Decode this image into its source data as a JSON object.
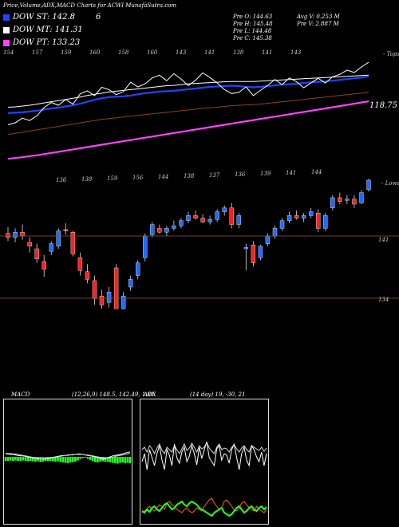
{
  "header": {
    "title": "Price,Volume,ADX,MACD Charts for ACWI MunafaSutra.com"
  },
  "legend": [
    {
      "label": "DOW ST: 142.8",
      "color": "#1e44ff",
      "note": "6"
    },
    {
      "label": "DOW MT: 141.31",
      "color": "#ffffff",
      "note": ""
    },
    {
      "label": "DOW PT: 133.23",
      "color": "#ff44ff",
      "note": ""
    }
  ],
  "info": {
    "pre_o": "Pre  O: 144.63",
    "pre_h": "Pre  H: 145.48",
    "pre_l": "Pre  L: 144.48",
    "pre_c": "Pre  C: 145.38",
    "avg_v": "Avg V: 0.253 M",
    "pre_v": "Pre  V: 2.887 M"
  },
  "top_label": "- Tops",
  "lows_label": "- Lows",
  "top_ticks": [
    "154",
    "157",
    "159",
    "160",
    "158",
    "160",
    "143",
    "141",
    "138",
    "141",
    "143"
  ],
  "low_ticks": [
    "136",
    "138",
    "159",
    "156",
    "144",
    "138",
    "137",
    "136",
    "139",
    "141",
    "144"
  ],
  "ema_label": "118.75",
  "right_labels": [
    "141",
    "134"
  ],
  "macd": {
    "title": "MACD",
    "params": "(12,26,9) 148.5,  142.49,  1.01"
  },
  "adx": {
    "title": "ADX",
    "params": "(14 day) 19,  -30,  21"
  },
  "chart_data": {
    "type": "candlestick",
    "title": "Price,Volume,ADX,MACD Charts for ACWI MunafaSutra.com",
    "candles": [
      {
        "o": 141.2,
        "h": 141.7,
        "l": 140.6,
        "c": 140.9
      },
      {
        "o": 140.9,
        "h": 141.6,
        "l": 140.5,
        "c": 141.3
      },
      {
        "o": 141.3,
        "h": 141.9,
        "l": 140.7,
        "c": 141.0
      },
      {
        "o": 140.5,
        "h": 140.9,
        "l": 139.7,
        "c": 140.2
      },
      {
        "o": 140.0,
        "h": 140.4,
        "l": 138.9,
        "c": 139.2
      },
      {
        "o": 139.0,
        "h": 139.5,
        "l": 137.8,
        "c": 138.4
      },
      {
        "o": 139.8,
        "h": 140.6,
        "l": 139.5,
        "c": 140.4
      },
      {
        "o": 140.2,
        "h": 141.6,
        "l": 140.0,
        "c": 141.4
      },
      {
        "o": 141.5,
        "h": 142.0,
        "l": 141.1,
        "c": 141.4
      },
      {
        "o": 141.3,
        "h": 141.4,
        "l": 139.4,
        "c": 139.6
      },
      {
        "o": 139.3,
        "h": 139.7,
        "l": 137.9,
        "c": 138.3
      },
      {
        "o": 138.2,
        "h": 138.8,
        "l": 137.3,
        "c": 137.6
      },
      {
        "o": 137.5,
        "h": 137.9,
        "l": 135.6,
        "c": 136.1
      },
      {
        "o": 136.3,
        "h": 136.8,
        "l": 135.3,
        "c": 135.6
      },
      {
        "o": 135.8,
        "h": 137.0,
        "l": 135.4,
        "c": 136.6
      },
      {
        "o": 138.5,
        "h": 138.8,
        "l": 134.7,
        "c": 135.0
      },
      {
        "o": 135.3,
        "h": 136.6,
        "l": 134.9,
        "c": 136.3
      },
      {
        "o": 137.0,
        "h": 137.9,
        "l": 136.7,
        "c": 137.6
      },
      {
        "o": 137.9,
        "h": 139.1,
        "l": 137.6,
        "c": 138.9
      },
      {
        "o": 139.3,
        "h": 141.2,
        "l": 139.0,
        "c": 141.0
      },
      {
        "o": 141.1,
        "h": 142.1,
        "l": 140.9,
        "c": 141.9
      },
      {
        "o": 141.6,
        "h": 141.9,
        "l": 141.2,
        "c": 141.3
      },
      {
        "o": 141.3,
        "h": 141.8,
        "l": 141.0,
        "c": 141.6
      },
      {
        "o": 141.6,
        "h": 142.2,
        "l": 141.4,
        "c": 141.8
      },
      {
        "o": 141.8,
        "h": 142.4,
        "l": 141.6,
        "c": 142.2
      },
      {
        "o": 142.2,
        "h": 142.9,
        "l": 142.0,
        "c": 142.6
      },
      {
        "o": 142.6,
        "h": 143.0,
        "l": 142.3,
        "c": 142.4
      },
      {
        "o": 142.4,
        "h": 142.7,
        "l": 142.0,
        "c": 142.1
      },
      {
        "o": 142.1,
        "h": 142.6,
        "l": 141.9,
        "c": 142.3
      },
      {
        "o": 142.3,
        "h": 143.1,
        "l": 142.1,
        "c": 142.9
      },
      {
        "o": 142.9,
        "h": 143.4,
        "l": 142.6,
        "c": 143.2
      },
      {
        "o": 143.2,
        "h": 143.6,
        "l": 141.6,
        "c": 141.9
      },
      {
        "o": 141.9,
        "h": 142.8,
        "l": 141.6,
        "c": 142.6
      },
      {
        "o": 140.0,
        "h": 140.4,
        "l": 138.3,
        "c": 140.1
      },
      {
        "o": 140.3,
        "h": 140.6,
        "l": 138.6,
        "c": 138.9
      },
      {
        "o": 139.3,
        "h": 140.3,
        "l": 139.1,
        "c": 140.2
      },
      {
        "o": 140.4,
        "h": 141.2,
        "l": 140.2,
        "c": 141.0
      },
      {
        "o": 141.0,
        "h": 141.8,
        "l": 140.8,
        "c": 141.6
      },
      {
        "o": 141.6,
        "h": 142.4,
        "l": 141.4,
        "c": 142.2
      },
      {
        "o": 142.2,
        "h": 142.9,
        "l": 142.0,
        "c": 142.6
      },
      {
        "o": 142.6,
        "h": 143.0,
        "l": 142.3,
        "c": 142.4
      },
      {
        "o": 142.4,
        "h": 142.8,
        "l": 142.1,
        "c": 142.6
      },
      {
        "o": 142.6,
        "h": 143.2,
        "l": 142.4,
        "c": 142.9
      },
      {
        "o": 142.8,
        "h": 143.1,
        "l": 141.3,
        "c": 141.6
      },
      {
        "o": 141.6,
        "h": 142.8,
        "l": 141.4,
        "c": 142.6
      },
      {
        "o": 143.2,
        "h": 144.2,
        "l": 143.0,
        "c": 144.0
      },
      {
        "o": 144.0,
        "h": 144.4,
        "l": 143.5,
        "c": 143.7
      },
      {
        "o": 143.8,
        "h": 144.2,
        "l": 143.5,
        "c": 143.9
      },
      {
        "o": 143.9,
        "h": 144.2,
        "l": 143.2,
        "c": 143.5
      },
      {
        "o": 143.6,
        "h": 144.6,
        "l": 143.5,
        "c": 144.4
      },
      {
        "o": 144.63,
        "h": 145.48,
        "l": 144.48,
        "c": 145.38
      }
    ],
    "ema_short": [
      151.5,
      151.6,
      151.7,
      151.9,
      152.1,
      152.4,
      152.7,
      152.9,
      153.2,
      153.5,
      153.9,
      154.4,
      154.9,
      155.3,
      155.6,
      155.7,
      155.8,
      156.0,
      156.3,
      156.6,
      156.8,
      157.0,
      157.1,
      157.2,
      157.4,
      157.6,
      157.8,
      158.0,
      158.2,
      158.3,
      158.4,
      158.5,
      158.4,
      158.2,
      158.1,
      158.2,
      158.4,
      158.6,
      158.8,
      158.9,
      159.0,
      159.2,
      159.4,
      159.5,
      159.6,
      159.8,
      160.0,
      160.2,
      160.4,
      160.6,
      160.9
    ],
    "ema_mid": [
      153.0,
      153.1,
      153.3,
      153.5,
      153.8,
      154.1,
      154.4,
      154.7,
      155.0,
      155.3,
      155.6,
      156.0,
      156.3,
      156.6,
      156.9,
      157.1,
      157.3,
      157.5,
      157.7,
      157.9,
      158.1,
      158.3,
      158.5,
      158.6,
      158.8,
      159.0,
      159.1,
      159.2,
      159.3,
      159.4,
      159.5,
      159.6,
      159.6,
      159.6,
      159.6,
      159.7,
      159.8,
      159.9,
      160.0,
      160.1,
      160.2,
      160.3,
      160.4,
      160.5,
      160.6,
      160.7,
      160.8,
      160.9,
      161.0,
      161.1,
      161.2
    ],
    "ema_long": [
      146.0,
      146.3,
      146.6,
      146.9,
      147.2,
      147.5,
      147.8,
      148.1,
      148.4,
      148.7,
      149.0,
      149.3,
      149.6,
      149.9,
      150.1,
      150.3,
      150.5,
      150.7,
      150.9,
      151.1,
      151.3,
      151.5,
      151.7,
      151.9,
      152.1,
      152.3,
      152.5,
      152.7,
      152.9,
      153.0,
      153.2,
      153.4,
      153.5,
      153.6,
      153.7,
      153.8,
      154.0,
      154.2,
      154.4,
      154.6,
      154.8,
      155.0,
      155.2,
      155.4,
      155.6,
      155.8,
      156.0,
      156.2,
      156.4,
      156.6,
      156.9
    ],
    "ema_pt": [
      139.8,
      140.0,
      140.2,
      140.5,
      140.7,
      141.0,
      141.3,
      141.6,
      141.9,
      142.2,
      142.5,
      142.8,
      143.1,
      143.4,
      143.7,
      144.0,
      144.3,
      144.6,
      144.9,
      145.2,
      145.5,
      145.8,
      146.1,
      146.4,
      146.7,
      147.0,
      147.3,
      147.6,
      147.9,
      148.2,
      148.5,
      148.8,
      149.1,
      149.4,
      149.7,
      150.0,
      150.3,
      150.6,
      150.9,
      151.2,
      151.5,
      151.8,
      152.1,
      152.4,
      152.7,
      153.0,
      153.3,
      153.6,
      153.9,
      154.2,
      154.5
    ],
    "price_line": [
      148.5,
      149.0,
      150.2,
      149.6,
      150.8,
      152.9,
      154.2,
      153.5,
      155.0,
      153.8,
      156.4,
      157.2,
      156.0,
      158.1,
      157.5,
      156.2,
      157.0,
      159.4,
      158.2,
      159.0,
      160.5,
      161.2,
      159.8,
      161.6,
      160.2,
      158.5,
      159.9,
      161.8,
      160.6,
      159.2,
      157.5,
      156.5,
      156.8,
      158.2,
      156.0,
      157.3,
      158.6,
      160.1,
      158.8,
      160.5,
      159.5,
      158.0,
      159.2,
      160.4,
      159.2,
      160.8,
      161.4,
      162.5,
      161.9,
      163.3,
      164.5
    ],
    "macd": [
      0.6,
      0.6,
      0.5,
      0.5,
      0.4,
      0.3,
      0.2,
      0.2,
      0.1,
      0.0,
      -0.1,
      -0.2,
      -0.3,
      -0.4,
      -0.4,
      -0.5,
      -0.4,
      -0.3,
      -0.2,
      -0.1,
      0.0,
      0.1,
      0.2,
      0.3,
      0.3,
      0.4,
      0.4,
      0.5,
      0.5,
      0.6,
      0.6,
      0.5,
      0.4,
      0.3,
      0.2,
      0.1,
      0.0,
      -0.1,
      -0.3,
      -0.5,
      -0.4,
      -0.2,
      0.0,
      0.2,
      0.3,
      0.4,
      0.5,
      0.6,
      0.8,
      0.9,
      1.01
    ],
    "macd_signal": [
      0.7,
      0.7,
      0.7,
      0.6,
      0.6,
      0.5,
      0.4,
      0.3,
      0.2,
      0.1,
      0.0,
      -0.1,
      -0.2,
      -0.3,
      -0.4,
      -0.5,
      -0.5,
      -0.4,
      -0.3,
      -0.2,
      -0.1,
      0.0,
      0.1,
      0.2,
      0.3,
      0.3,
      0.4,
      0.4,
      0.5,
      0.5,
      0.5,
      0.5,
      0.4,
      0.4,
      0.3,
      0.2,
      0.1,
      0.0,
      -0.1,
      -0.2,
      -0.3,
      -0.3,
      -0.2,
      -0.1,
      0.1,
      0.2,
      0.3,
      0.4,
      0.5,
      0.6,
      0.7
    ],
    "macd_hist": [
      1.0,
      1.0,
      0.9,
      1.0,
      0.9,
      1.0,
      1.0,
      0.9,
      1.0,
      1.1,
      1.0,
      1.1,
      1.2,
      1.1,
      1.3,
      1.2,
      1.0,
      1.1,
      1.0,
      1.1,
      1.2,
      1.1,
      1.3,
      1.4,
      1.5,
      1.6,
      1.4,
      1.3,
      1.2,
      0.9,
      0.5,
      0.3,
      0.2,
      0.5,
      0.8,
      1.1,
      1.3,
      1.4,
      1.2,
      1.1,
      1.2,
      1.3,
      1.4,
      1.5,
      1.6,
      1.7,
      1.5,
      1.4,
      1.6,
      1.5,
      1.6
    ],
    "adx_plus": [
      40,
      50,
      30,
      55,
      45,
      35,
      50,
      60,
      42,
      30,
      55,
      48,
      35,
      62,
      45,
      38,
      52,
      58,
      40,
      47,
      60,
      50,
      36,
      58,
      44,
      55,
      65,
      45,
      40,
      35,
      56,
      60,
      42,
      50,
      48,
      38,
      55,
      62,
      45,
      30,
      50,
      58,
      42,
      35,
      60,
      55,
      46,
      40,
      52,
      35,
      50
    ],
    "adx_minus": [
      55,
      58,
      52,
      60,
      56,
      50,
      57,
      62,
      54,
      50,
      58,
      55,
      52,
      60,
      55,
      50,
      56,
      62,
      54,
      57,
      63,
      58,
      52,
      60,
      56,
      58,
      64,
      57,
      53,
      50,
      58,
      62,
      55,
      57,
      56,
      52,
      58,
      61,
      56,
      52,
      57,
      60,
      55,
      52,
      60,
      58,
      56,
      54,
      58,
      53,
      57
    ],
    "adx_red": [
      10,
      12,
      15,
      18,
      14,
      12,
      16,
      20,
      18,
      14,
      22,
      24,
      20,
      18,
      14,
      12,
      10,
      14,
      16,
      12,
      10,
      12,
      16,
      14,
      12,
      18,
      22,
      26,
      28,
      22,
      18,
      14,
      16,
      24,
      26,
      22,
      18,
      14,
      12,
      16,
      22,
      24,
      20,
      16,
      14,
      12,
      18,
      14,
      12,
      10,
      14
    ],
    "adx_green": [
      16,
      14,
      18,
      15,
      20,
      22,
      18,
      16,
      20,
      24,
      26,
      22,
      18,
      20,
      24,
      26,
      28,
      24,
      22,
      26,
      28,
      26,
      24,
      20,
      18,
      16,
      14,
      12,
      10,
      14,
      16,
      18,
      20,
      14,
      12,
      10,
      12,
      16,
      20,
      22,
      18,
      14,
      16,
      20,
      22,
      18,
      16,
      20,
      22,
      18,
      21
    ]
  }
}
